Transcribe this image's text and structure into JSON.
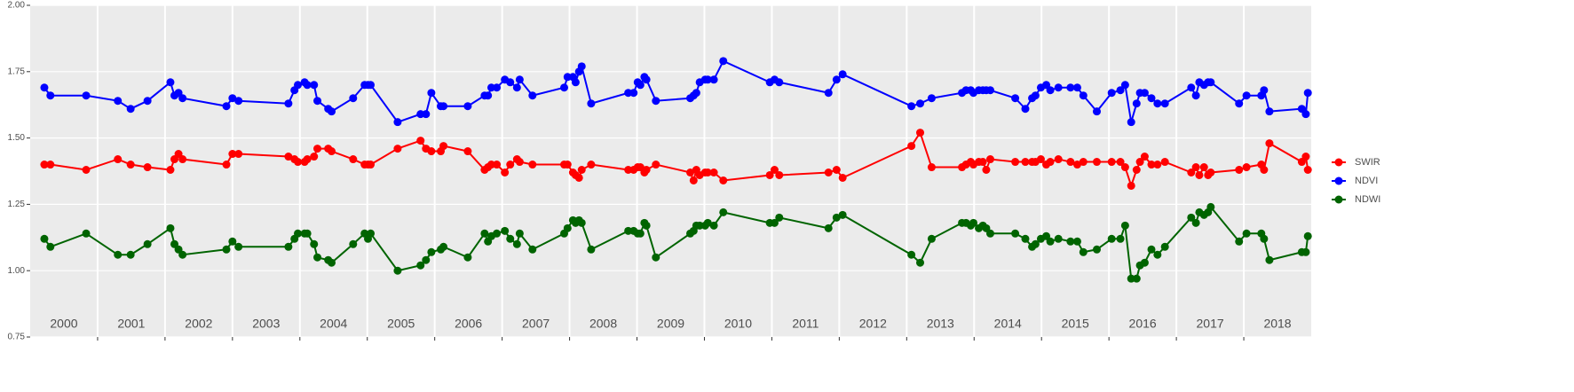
{
  "chart_data": {
    "type": "line",
    "x": [
      2000.21,
      2000.3,
      2000.83,
      2001.3,
      2001.49,
      2001.74,
      2002.08,
      2002.14,
      2002.2,
      2002.26,
      2002.91,
      2003.0,
      2003.09,
      2003.83,
      2003.92,
      2003.97,
      2004.07,
      2004.11,
      2004.21,
      2004.26,
      2004.42,
      2004.47,
      2004.79,
      2004.96,
      2005.01,
      2005.05,
      2005.45,
      2005.79,
      2005.87,
      2005.95,
      2006.09,
      2006.13,
      2006.49,
      2006.74,
      2006.79,
      2006.84,
      2006.92,
      2007.04,
      2007.12,
      2007.22,
      2007.26,
      2007.45,
      2007.92,
      2007.97,
      2008.05,
      2008.09,
      2008.14,
      2008.18,
      2008.32,
      2008.87,
      2008.95,
      2009.01,
      2009.05,
      2009.11,
      2009.14,
      2009.28,
      2009.79,
      2009.84,
      2009.88,
      2009.93,
      2010.01,
      2010.05,
      2010.14,
      2010.28,
      2010.97,
      2011.04,
      2011.11,
      2011.84,
      2011.96,
      2012.05,
      2013.07,
      2013.2,
      2013.37,
      2013.82,
      2013.88,
      2013.95,
      2013.99,
      2014.07,
      2014.13,
      2014.18,
      2014.24,
      2014.61,
      2014.76,
      2014.86,
      2014.91,
      2014.99,
      2015.07,
      2015.13,
      2015.25,
      2015.43,
      2015.53,
      2015.62,
      2015.82,
      2016.04,
      2016.17,
      2016.24,
      2016.33,
      2016.41,
      2016.46,
      2016.53,
      2016.63,
      2016.72,
      2016.83,
      2017.22,
      2017.29,
      2017.34,
      2017.41,
      2017.47,
      2017.51,
      2017.93,
      2018.04,
      2018.26,
      2018.3,
      2018.38,
      2018.86,
      2018.92,
      2018.95
    ],
    "series": [
      {
        "name": "SWIR",
        "color": "#ff0000",
        "values": [
          1.4,
          1.4,
          1.38,
          1.42,
          1.4,
          1.39,
          1.38,
          1.42,
          1.44,
          1.42,
          1.4,
          1.44,
          1.44,
          1.43,
          1.42,
          1.41,
          1.41,
          1.42,
          1.43,
          1.46,
          1.46,
          1.45,
          1.42,
          1.4,
          1.4,
          1.4,
          1.46,
          1.49,
          1.46,
          1.45,
          1.45,
          1.47,
          1.45,
          1.38,
          1.39,
          1.4,
          1.4,
          1.37,
          1.4,
          1.42,
          1.41,
          1.4,
          1.4,
          1.4,
          1.37,
          1.36,
          1.35,
          1.38,
          1.4,
          1.38,
          1.38,
          1.39,
          1.39,
          1.37,
          1.38,
          1.4,
          1.37,
          1.34,
          1.38,
          1.36,
          1.37,
          1.37,
          1.37,
          1.34,
          1.36,
          1.38,
          1.36,
          1.37,
          1.38,
          1.35,
          1.47,
          1.52,
          1.39,
          1.39,
          1.4,
          1.41,
          1.4,
          1.41,
          1.41,
          1.38,
          1.42,
          1.41,
          1.41,
          1.41,
          1.41,
          1.42,
          1.4,
          1.41,
          1.42,
          1.41,
          1.4,
          1.41,
          1.41,
          1.41,
          1.41,
          1.39,
          1.32,
          1.38,
          1.41,
          1.43,
          1.4,
          1.4,
          1.41,
          1.37,
          1.39,
          1.36,
          1.39,
          1.36,
          1.37,
          1.38,
          1.39,
          1.4,
          1.38,
          1.48,
          1.41,
          1.43,
          1.38
        ]
      },
      {
        "name": "NDVI",
        "color": "#0000ff",
        "values": [
          1.69,
          1.66,
          1.66,
          1.64,
          1.61,
          1.64,
          1.71,
          1.66,
          1.67,
          1.65,
          1.62,
          1.65,
          1.64,
          1.63,
          1.68,
          1.7,
          1.71,
          1.7,
          1.7,
          1.64,
          1.61,
          1.6,
          1.65,
          1.7,
          1.7,
          1.7,
          1.56,
          1.59,
          1.59,
          1.67,
          1.62,
          1.62,
          1.62,
          1.66,
          1.66,
          1.69,
          1.69,
          1.72,
          1.71,
          1.69,
          1.72,
          1.66,
          1.69,
          1.73,
          1.73,
          1.71,
          1.75,
          1.77,
          1.63,
          1.67,
          1.67,
          1.71,
          1.7,
          1.73,
          1.72,
          1.64,
          1.65,
          1.66,
          1.67,
          1.71,
          1.72,
          1.72,
          1.72,
          1.79,
          1.71,
          1.72,
          1.71,
          1.67,
          1.72,
          1.74,
          1.62,
          1.63,
          1.65,
          1.67,
          1.68,
          1.68,
          1.67,
          1.68,
          1.68,
          1.68,
          1.68,
          1.65,
          1.61,
          1.65,
          1.66,
          1.69,
          1.7,
          1.68,
          1.69,
          1.69,
          1.69,
          1.66,
          1.6,
          1.67,
          1.68,
          1.7,
          1.56,
          1.63,
          1.67,
          1.67,
          1.65,
          1.63,
          1.63,
          1.69,
          1.66,
          1.71,
          1.7,
          1.71,
          1.71,
          1.63,
          1.66,
          1.66,
          1.68,
          1.6,
          1.61,
          1.59,
          1.67
        ]
      },
      {
        "name": "NDWI",
        "color": "#006400",
        "values": [
          1.12,
          1.09,
          1.14,
          1.06,
          1.06,
          1.1,
          1.16,
          1.1,
          1.08,
          1.06,
          1.08,
          1.11,
          1.09,
          1.09,
          1.12,
          1.14,
          1.14,
          1.14,
          1.1,
          1.05,
          1.04,
          1.03,
          1.1,
          1.14,
          1.12,
          1.14,
          1.0,
          1.02,
          1.04,
          1.07,
          1.08,
          1.09,
          1.05,
          1.14,
          1.11,
          1.13,
          1.14,
          1.15,
          1.12,
          1.1,
          1.14,
          1.08,
          1.14,
          1.16,
          1.19,
          1.18,
          1.19,
          1.18,
          1.08,
          1.15,
          1.15,
          1.14,
          1.14,
          1.18,
          1.17,
          1.05,
          1.14,
          1.15,
          1.17,
          1.17,
          1.17,
          1.18,
          1.17,
          1.22,
          1.18,
          1.18,
          1.2,
          1.16,
          1.2,
          1.21,
          1.06,
          1.03,
          1.12,
          1.18,
          1.18,
          1.17,
          1.18,
          1.16,
          1.17,
          1.16,
          1.14,
          1.14,
          1.12,
          1.09,
          1.1,
          1.12,
          1.13,
          1.11,
          1.12,
          1.11,
          1.11,
          1.07,
          1.08,
          1.12,
          1.12,
          1.17,
          0.97,
          0.97,
          1.02,
          1.03,
          1.08,
          1.06,
          1.09,
          1.2,
          1.18,
          1.22,
          1.21,
          1.22,
          1.24,
          1.11,
          1.14,
          1.14,
          1.12,
          1.04,
          1.07,
          1.07,
          1.13
        ]
      }
    ],
    "xlim": [
      2000,
      2019
    ],
    "xticks": [
      2001,
      2002,
      2003,
      2004,
      2005,
      2006,
      2007,
      2008,
      2009,
      2010,
      2011,
      2012,
      2013,
      2014,
      2015,
      2016,
      2017,
      2018
    ],
    "year_labels": [
      {
        "value": 2000.5,
        "label": "2000"
      },
      {
        "value": 2001.5,
        "label": "2001"
      },
      {
        "value": 2002.5,
        "label": "2002"
      },
      {
        "value": 2003.5,
        "label": "2003"
      },
      {
        "value": 2004.5,
        "label": "2004"
      },
      {
        "value": 2005.5,
        "label": "2005"
      },
      {
        "value": 2006.5,
        "label": "2006"
      },
      {
        "value": 2007.5,
        "label": "2007"
      },
      {
        "value": 2008.5,
        "label": "2008"
      },
      {
        "value": 2009.5,
        "label": "2009"
      },
      {
        "value": 2010.5,
        "label": "2010"
      },
      {
        "value": 2011.5,
        "label": "2011"
      },
      {
        "value": 2012.5,
        "label": "2012"
      },
      {
        "value": 2013.5,
        "label": "2013"
      },
      {
        "value": 2014.5,
        "label": "2014"
      },
      {
        "value": 2015.5,
        "label": "2015"
      },
      {
        "value": 2016.5,
        "label": "2016"
      },
      {
        "value": 2017.5,
        "label": "2017"
      },
      {
        "value": 2018.5,
        "label": "2018"
      }
    ],
    "ylim": [
      0.75,
      2.0
    ],
    "yticks": [
      0.75,
      {
        "value": 1,
        "label": "1.00"
      },
      1.25,
      {
        "value": 1.5,
        "label": "1.50"
      },
      1.75,
      {
        "value": 2,
        "label": "2.00"
      }
    ],
    "grid": true,
    "legend": "right"
  }
}
